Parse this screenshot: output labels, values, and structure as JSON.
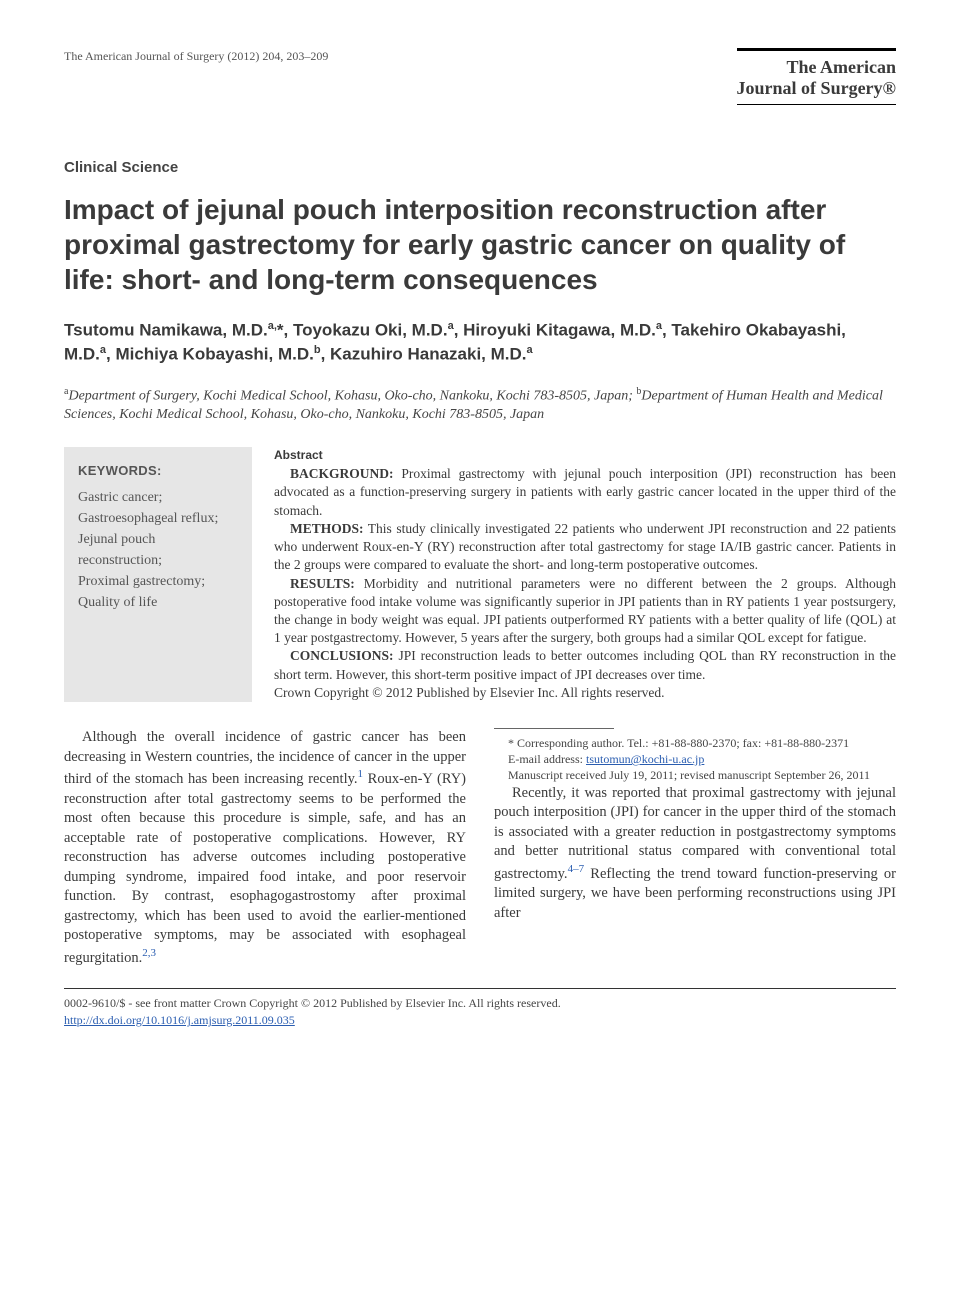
{
  "runningHead": "The American Journal of Surgery (2012) 204, 203–209",
  "journalBrand": {
    "line1": "The American",
    "line2": "Journal of Surgery®"
  },
  "sectionLabel": "Clinical Science",
  "title": "Impact of jejunal pouch interposition reconstruction after proximal gastrectomy for early gastric cancer on quality of life: short- and long-term consequences",
  "authorsHtml": "Tsutomu Namikawa, M.D.<sup>a,</sup>*, Toyokazu Oki, M.D.<sup>a</sup>, Hiroyuki Kitagawa, M.D.<sup>a</sup>, Takehiro Okabayashi, M.D.<sup>a</sup>, Michiya Kobayashi, M.D.<sup>b</sup>, Kazuhiro Hanazaki, M.D.<sup>a</sup>",
  "affiliationsHtml": "<sup>a</sup>Department of Surgery, Kochi Medical School, Kohasu, Oko-cho, Nankoku, Kochi 783-8505, Japan; <sup>b</sup>Department of Human Health and Medical Sciences, Kochi Medical School, Kohasu, Oko-cho, Nankoku, Kochi 783-8505, Japan",
  "keywords": {
    "title": "KEYWORDS:",
    "items": [
      "Gastric cancer;",
      "Gastroesophageal reflux;",
      "Jejunal pouch reconstruction;",
      "Proximal gastrectomy;",
      "Quality of life"
    ]
  },
  "abstract": {
    "heading": "Abstract",
    "paras": [
      {
        "label": "BACKGROUND:",
        "text": "Proximal gastrectomy with jejunal pouch interposition (JPI) reconstruction has been advocated as a function-preserving surgery in patients with early gastric cancer located in the upper third of the stomach."
      },
      {
        "label": "METHODS:",
        "text": "This study clinically investigated 22 patients who underwent JPI reconstruction and 22 patients who underwent Roux-en-Y (RY) reconstruction after total gastrectomy for stage IA/IB gastric cancer. Patients in the 2 groups were compared to evaluate the short- and long-term postoperative outcomes."
      },
      {
        "label": "RESULTS:",
        "text": "Morbidity and nutritional parameters were no different between the 2 groups. Although postoperative food intake volume was significantly superior in JPI patients than in RY patients 1 year postsurgery, the change in body weight was equal. JPI patients outperformed RY patients with a better quality of life (QOL) at 1 year postgastrectomy. However, 5 years after the surgery, both groups had a similar QOL except for fatigue."
      },
      {
        "label": "CONCLUSIONS:",
        "text": "JPI reconstruction leads to better outcomes including QOL than RY reconstruction in the short term. However, this short-term positive impact of JPI decreases over time."
      }
    ],
    "crown": "Crown Copyright © 2012 Published by Elsevier Inc. All rights reserved."
  },
  "body": {
    "p1a": "Although the overall incidence of gastric cancer has been decreasing in Western countries, the incidence of cancer in the upper third of the stomach has been increasing recently.",
    "cite1": "1",
    "p1b": " Roux-en-Y (RY) reconstruction after total gastrectomy seems to be performed the most often because this procedure is simple, safe, and has an acceptable rate of postoperative complications. However, RY reconstruction has ad",
    "p2a": "verse outcomes including postoperative dumping syndrome, impaired food intake, and poor reservoir function. By contrast, esophagogastrostomy after proximal gastrectomy, which has been used to avoid the earlier-mentioned postoperative symptoms, may be associated with esophageal regurgitation.",
    "cite23": "2,3",
    "p3a": "Recently, it was reported that proximal gastrectomy with jejunal pouch interposition (JPI) for cancer in the upper third of the stomach is associated with a greater reduction in postgastrectomy symptoms and better nutritional status compared with conventional total gastrectomy.",
    "cite47": "4–7",
    "p3b": " Reflecting the trend toward function-preserving or limited surgery, we have been performing reconstructions using JPI after"
  },
  "footnotes": {
    "corr": "* Corresponding author. Tel.: +81-88-880-2370; fax: +81-88-880-2371",
    "emailLabel": "E-mail address: ",
    "email": "tsutomun@kochi-u.ac.jp",
    "ms": "Manuscript received July 19, 2011; revised manuscript September 26, 2011"
  },
  "bottom": {
    "copyright": "0002-9610/$ - see front matter Crown Copyright © 2012 Published by Elsevier Inc. All rights reserved.",
    "doi": "http://dx.doi.org/10.1016/j.amjsurg.2011.09.035"
  },
  "colors": {
    "text": "#3a3a3a",
    "link": "#2a5db0",
    "kwBg": "#e6e6e6",
    "rule": "#000000"
  }
}
